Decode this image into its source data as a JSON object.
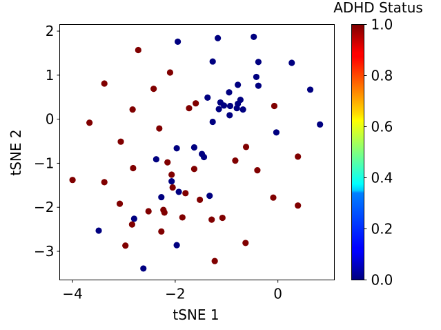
{
  "chart_data": {
    "type": "scatter",
    "xlabel": "tSNE 1",
    "ylabel": "tSNE 2",
    "xlim": [
      -4.25,
      1.1
    ],
    "ylim": [
      -3.65,
      2.15
    ],
    "xticks": [
      -4,
      -2,
      0
    ],
    "xtick_labels": [
      "−4",
      "−2",
      "0"
    ],
    "yticks": [
      -3,
      -2,
      -1,
      0,
      1,
      2
    ],
    "ytick_labels": [
      "−3",
      "−2",
      "−1",
      "0",
      "1",
      "2"
    ],
    "grid": false,
    "colormap": "jet",
    "colorbar": {
      "label": "ADHD Status",
      "range": [
        0,
        1
      ],
      "ticks": [
        0.0,
        0.2,
        0.4,
        0.6,
        0.8,
        1.0
      ],
      "tick_labels": [
        "0.0",
        "0.2",
        "0.4",
        "0.6",
        "0.8",
        "1.0"
      ]
    },
    "points": [
      {
        "x": -0.47,
        "y": 1.87,
        "c": 0
      },
      {
        "x": -1.17,
        "y": 1.84,
        "c": 0
      },
      {
        "x": -1.95,
        "y": 1.76,
        "c": 0
      },
      {
        "x": -0.38,
        "y": 1.3,
        "c": 0
      },
      {
        "x": -1.27,
        "y": 1.31,
        "c": 0
      },
      {
        "x": 0.27,
        "y": 1.28,
        "c": 0
      },
      {
        "x": -0.42,
        "y": 0.96,
        "c": 0
      },
      {
        "x": -0.78,
        "y": 0.78,
        "c": 0
      },
      {
        "x": -0.38,
        "y": 0.76,
        "c": 0
      },
      {
        "x": 0.63,
        "y": 0.67,
        "c": 0
      },
      {
        "x": -0.95,
        "y": 0.61,
        "c": 0
      },
      {
        "x": -1.37,
        "y": 0.49,
        "c": 0
      },
      {
        "x": -0.73,
        "y": 0.44,
        "c": 0
      },
      {
        "x": -1.12,
        "y": 0.38,
        "c": 0
      },
      {
        "x": -0.78,
        "y": 0.35,
        "c": 0
      },
      {
        "x": -1.05,
        "y": 0.31,
        "c": 0
      },
      {
        "x": -0.93,
        "y": 0.3,
        "c": 0
      },
      {
        "x": -0.8,
        "y": 0.25,
        "c": 0
      },
      {
        "x": -1.15,
        "y": 0.23,
        "c": 0
      },
      {
        "x": -0.68,
        "y": 0.22,
        "c": 0
      },
      {
        "x": -0.94,
        "y": 0.09,
        "c": 0
      },
      {
        "x": -1.27,
        "y": -0.06,
        "c": 0
      },
      {
        "x": 0.82,
        "y": -0.12,
        "c": 0
      },
      {
        "x": -0.03,
        "y": -0.3,
        "c": 0
      },
      {
        "x": -1.63,
        "y": -0.64,
        "c": 0
      },
      {
        "x": -1.97,
        "y": -0.66,
        "c": 0
      },
      {
        "x": -1.48,
        "y": -0.79,
        "c": 0
      },
      {
        "x": -1.44,
        "y": -0.86,
        "c": 0
      },
      {
        "x": -2.37,
        "y": -0.91,
        "c": 0
      },
      {
        "x": -2.07,
        "y": -1.41,
        "c": 0
      },
      {
        "x": -1.93,
        "y": -1.65,
        "c": 0
      },
      {
        "x": -2.27,
        "y": -1.77,
        "c": 0
      },
      {
        "x": -1.33,
        "y": -1.74,
        "c": 0
      },
      {
        "x": -2.8,
        "y": -2.26,
        "c": 0
      },
      {
        "x": -3.49,
        "y": -2.53,
        "c": 0
      },
      {
        "x": -1.97,
        "y": -2.86,
        "c": 0
      },
      {
        "x": -2.62,
        "y": -3.39,
        "c": 0
      },
      {
        "x": -2.72,
        "y": 1.57,
        "c": 1
      },
      {
        "x": -2.1,
        "y": 1.06,
        "c": 1
      },
      {
        "x": -3.38,
        "y": 0.81,
        "c": 1
      },
      {
        "x": -2.42,
        "y": 0.69,
        "c": 1
      },
      {
        "x": -1.6,
        "y": 0.36,
        "c": 1
      },
      {
        "x": -1.73,
        "y": 0.25,
        "c": 1
      },
      {
        "x": -0.07,
        "y": 0.3,
        "c": 1
      },
      {
        "x": -2.83,
        "y": 0.22,
        "c": 1
      },
      {
        "x": -2.31,
        "y": -0.21,
        "c": 1
      },
      {
        "x": -3.67,
        "y": -0.08,
        "c": 1
      },
      {
        "x": -3.06,
        "y": -0.51,
        "c": 1
      },
      {
        "x": -0.62,
        "y": -0.63,
        "c": 1
      },
      {
        "x": 0.39,
        "y": -0.85,
        "c": 1
      },
      {
        "x": -0.83,
        "y": -0.94,
        "c": 1
      },
      {
        "x": -2.15,
        "y": -0.98,
        "c": 1
      },
      {
        "x": -2.82,
        "y": -1.11,
        "c": 1
      },
      {
        "x": -1.63,
        "y": -1.13,
        "c": 1
      },
      {
        "x": -0.4,
        "y": -1.16,
        "c": 1
      },
      {
        "x": -2.07,
        "y": -1.26,
        "c": 1
      },
      {
        "x": -4.0,
        "y": -1.38,
        "c": 1
      },
      {
        "x": -3.38,
        "y": -1.43,
        "c": 1
      },
      {
        "x": -2.05,
        "y": -1.55,
        "c": 1
      },
      {
        "x": -1.8,
        "y": -1.68,
        "c": 1
      },
      {
        "x": -0.09,
        "y": -1.78,
        "c": 1
      },
      {
        "x": -1.52,
        "y": -1.83,
        "c": 1
      },
      {
        "x": -3.08,
        "y": -1.92,
        "c": 1
      },
      {
        "x": 0.39,
        "y": -1.96,
        "c": 1
      },
      {
        "x": -2.52,
        "y": -2.09,
        "c": 1
      },
      {
        "x": -2.23,
        "y": -2.06,
        "c": 1
      },
      {
        "x": -2.21,
        "y": -2.12,
        "c": 1
      },
      {
        "x": -1.86,
        "y": -2.23,
        "c": 1
      },
      {
        "x": -1.08,
        "y": -2.24,
        "c": 1
      },
      {
        "x": -1.29,
        "y": -2.28,
        "c": 1
      },
      {
        "x": -2.84,
        "y": -2.39,
        "c": 1
      },
      {
        "x": -2.27,
        "y": -2.55,
        "c": 1
      },
      {
        "x": -0.63,
        "y": -2.81,
        "c": 1
      },
      {
        "x": -2.97,
        "y": -2.87,
        "c": 1
      },
      {
        "x": -1.23,
        "y": -3.22,
        "c": 1
      }
    ]
  }
}
